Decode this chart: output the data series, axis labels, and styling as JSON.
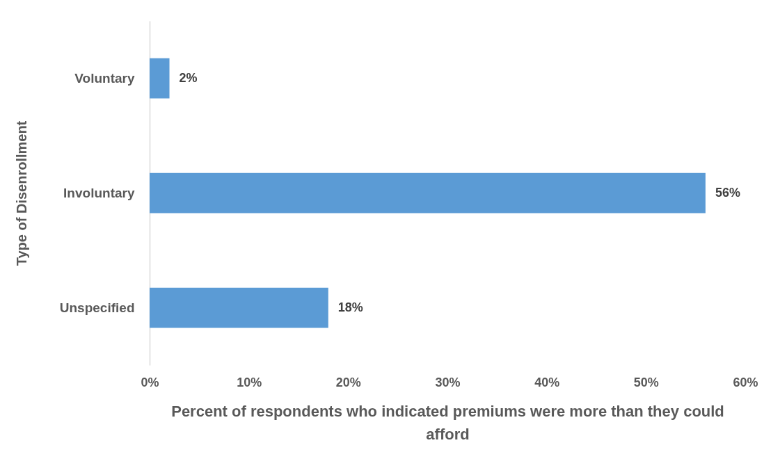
{
  "chart_data": {
    "type": "bar",
    "orientation": "horizontal",
    "categories": [
      "Voluntary",
      "Involuntary",
      "Unspecified"
    ],
    "values": [
      2,
      56,
      18
    ],
    "color": "#5b9bd5",
    "value_labels": [
      "2%",
      "56%",
      "18%"
    ],
    "xlim": [
      0,
      60
    ],
    "xticks": [
      {
        "value": 0,
        "label": "0%"
      },
      {
        "value": 10,
        "label": "10%"
      },
      {
        "value": 20,
        "label": "20%"
      },
      {
        "value": 30,
        "label": "30%"
      },
      {
        "value": 40,
        "label": "40%"
      },
      {
        "value": 50,
        "label": "50%"
      },
      {
        "value": 60,
        "label": "60%"
      }
    ],
    "xlabel": "Percent of respondents who indicated premiums were more than they could afford",
    "ylabel": "Type of Disenrollment"
  }
}
